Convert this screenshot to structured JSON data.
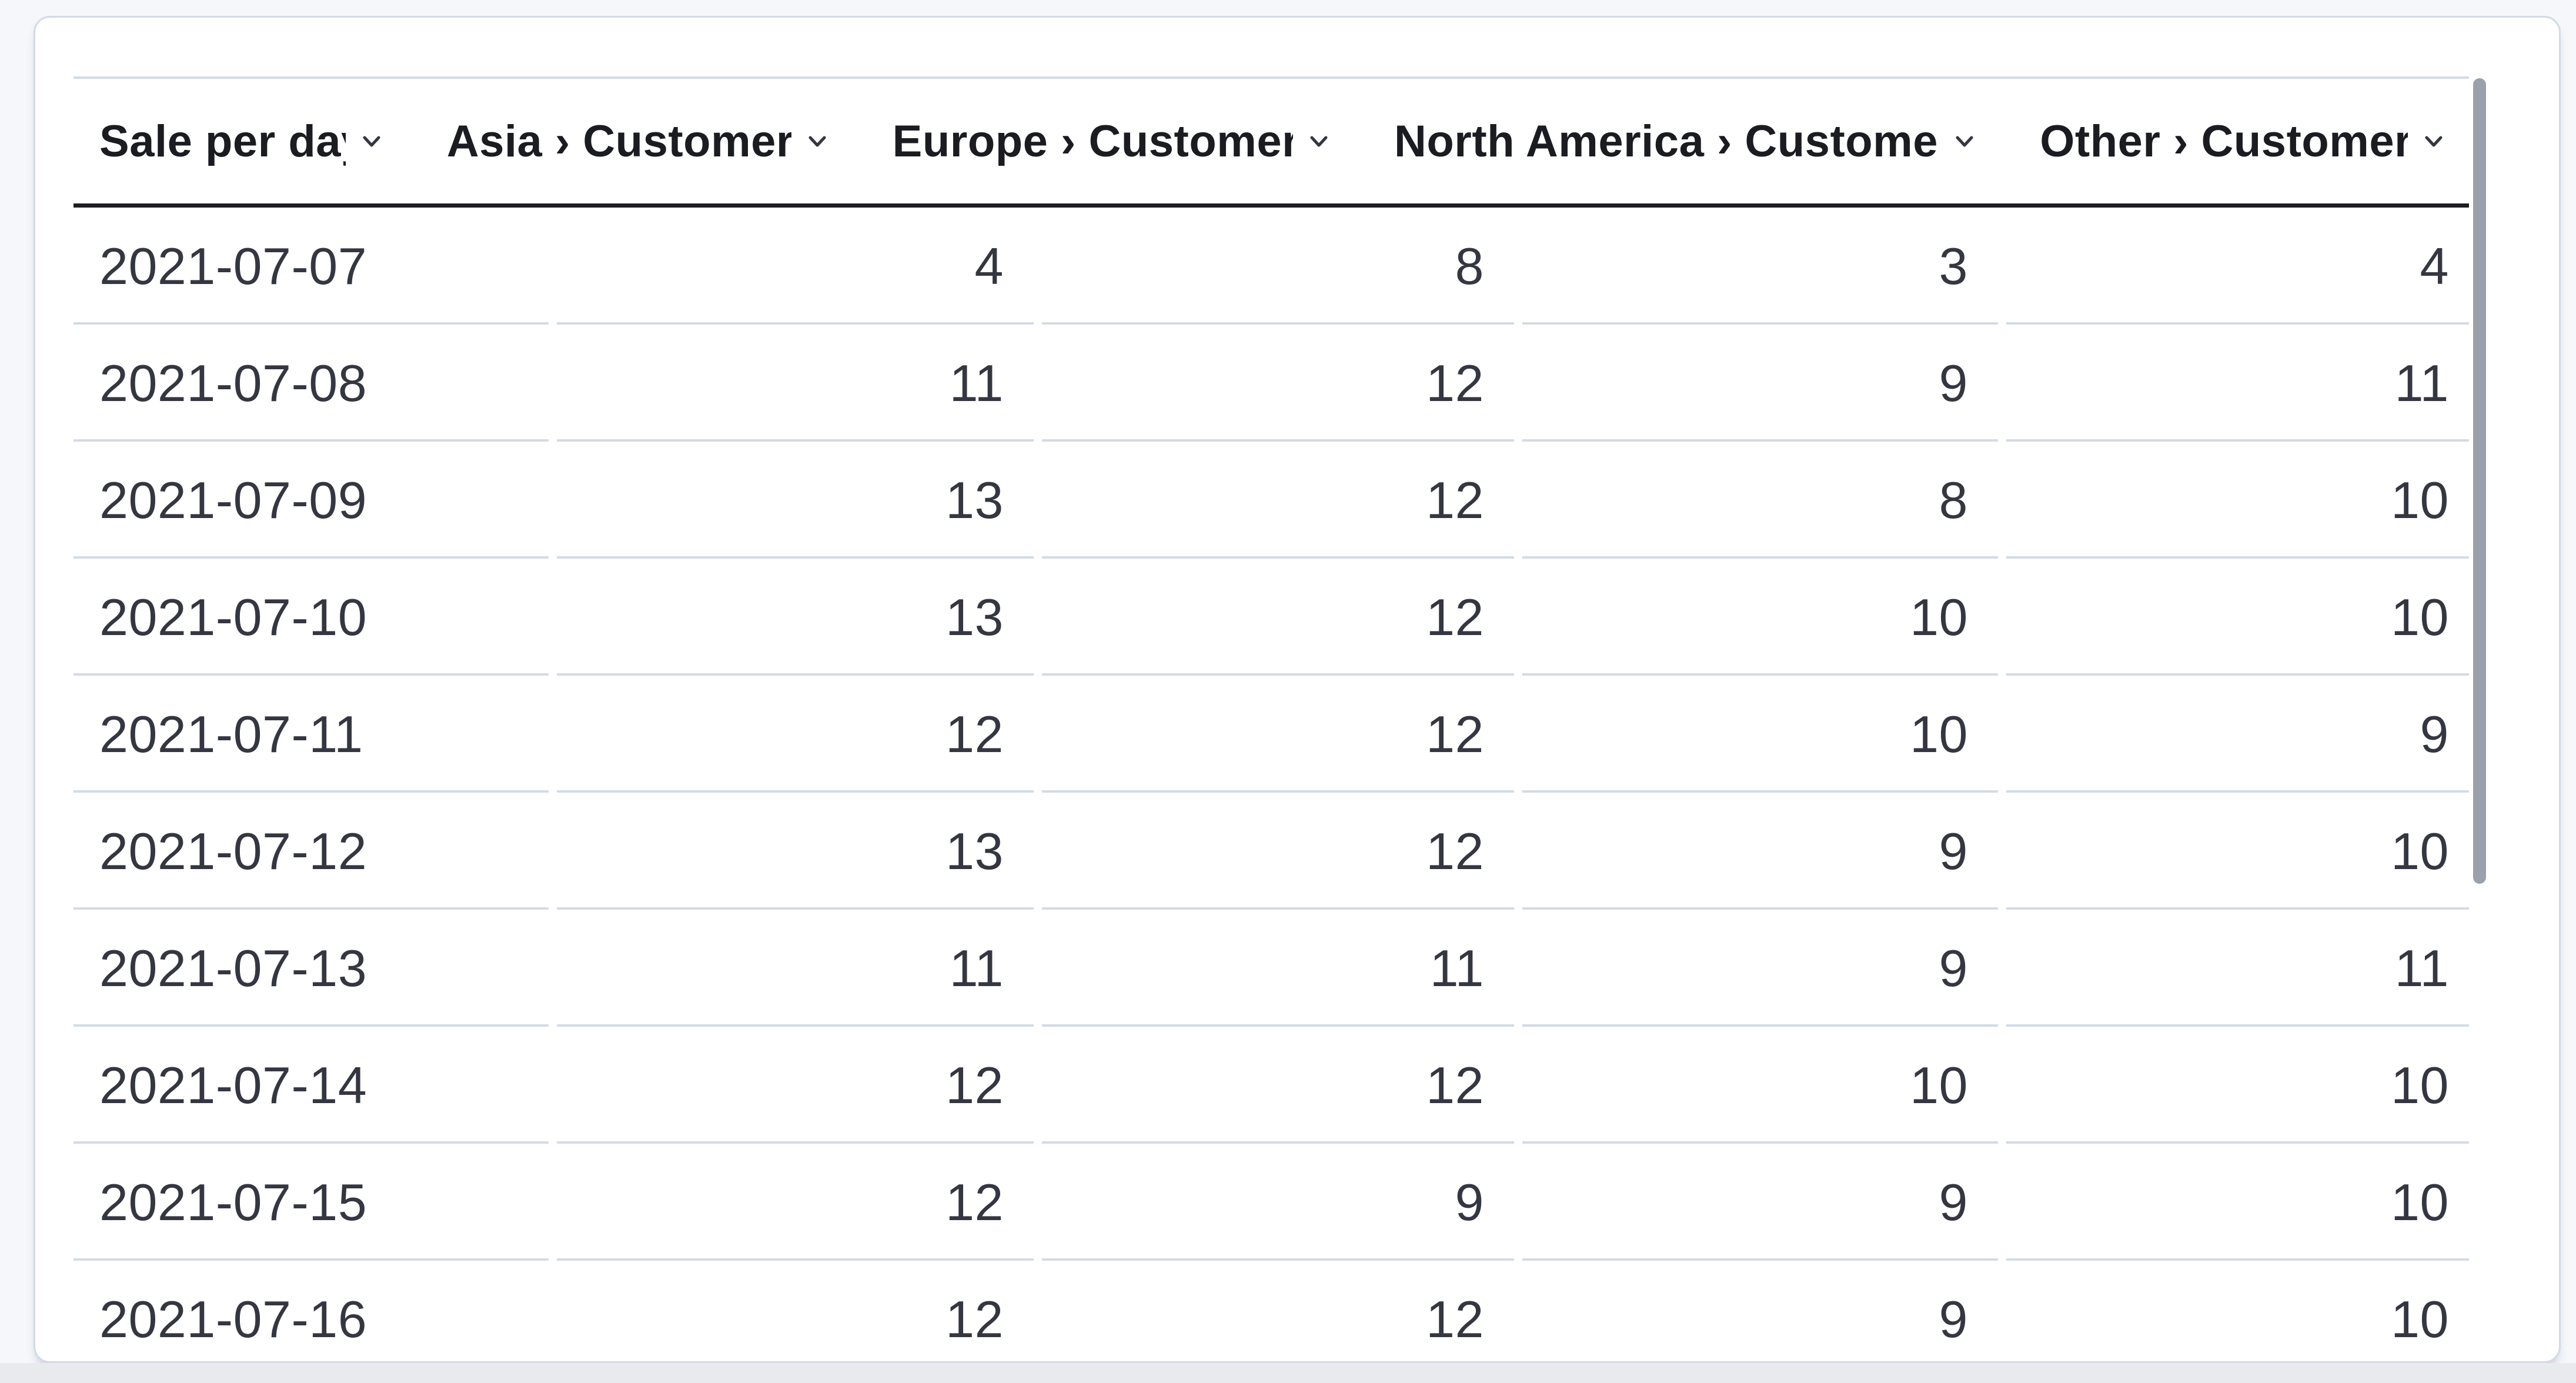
{
  "table": {
    "title_column": "Sale per day",
    "columns": [
      {
        "label": "Sale per day",
        "align": "left"
      },
      {
        "label": "Asia › Customers",
        "align": "right"
      },
      {
        "label": "Europe › Customers",
        "align": "right"
      },
      {
        "label": "North America › Customers",
        "align": "right"
      },
      {
        "label": "Other › Customers",
        "align": "right"
      }
    ],
    "rows": [
      {
        "date": "2021-07-07",
        "values": [
          "4",
          "8",
          "3",
          "4"
        ]
      },
      {
        "date": "2021-07-08",
        "values": [
          "11",
          "12",
          "9",
          "11"
        ]
      },
      {
        "date": "2021-07-09",
        "values": [
          "13",
          "12",
          "8",
          "10"
        ]
      },
      {
        "date": "2021-07-10",
        "values": [
          "13",
          "12",
          "10",
          "10"
        ]
      },
      {
        "date": "2021-07-11",
        "values": [
          "12",
          "12",
          "10",
          "9"
        ]
      },
      {
        "date": "2021-07-12",
        "values": [
          "13",
          "12",
          "9",
          "10"
        ]
      },
      {
        "date": "2021-07-13",
        "values": [
          "11",
          "11",
          "9",
          "11"
        ]
      },
      {
        "date": "2021-07-14",
        "values": [
          "12",
          "12",
          "10",
          "10"
        ]
      },
      {
        "date": "2021-07-15",
        "values": [
          "12",
          "9",
          "9",
          "10"
        ]
      },
      {
        "date": "2021-07-16",
        "values": [
          "12",
          "12",
          "9",
          "10"
        ]
      }
    ]
  },
  "icons": {
    "header_chevron": "chevron-down-icon"
  },
  "colors": {
    "header_text": "#1a1c21",
    "body_text": "#343741",
    "header_rule_dark": "#1d1e24",
    "row_separator": "#d3dbe6",
    "card_border": "#d3dae6",
    "scrollbar_thumb": "#9aa1ab",
    "page_background": "#f5f7fa",
    "bottom_strip": "#e8eaed"
  }
}
